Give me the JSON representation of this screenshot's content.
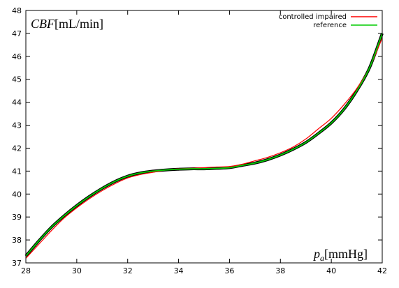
{
  "chart_data": {
    "type": "line",
    "ylabel_var": "CBF",
    "ylabel_unit": "[mL/min]",
    "xlabel_var": "p",
    "xlabel_sub": "a",
    "xlabel_unit": "[mmHg]",
    "xlim": [
      28,
      42
    ],
    "ylim": [
      37,
      48
    ],
    "xticks": [
      28,
      30,
      32,
      34,
      36,
      38,
      40,
      42
    ],
    "yticks": [
      37,
      38,
      39,
      40,
      41,
      42,
      43,
      44,
      45,
      46,
      47,
      48
    ],
    "grid": false,
    "legend_position": "top-right",
    "series": [
      {
        "name": "controlled impaired",
        "color": "#ff0000",
        "points": [
          [
            28,
            37.2
          ],
          [
            28.5,
            37.8
          ],
          [
            29,
            38.4
          ],
          [
            29.5,
            38.95
          ],
          [
            30,
            39.4
          ],
          [
            30.5,
            39.8
          ],
          [
            31,
            40.15
          ],
          [
            31.5,
            40.45
          ],
          [
            32,
            40.7
          ],
          [
            32.5,
            40.85
          ],
          [
            33,
            40.95
          ],
          [
            33.5,
            41.05
          ],
          [
            34,
            41.1
          ],
          [
            34.5,
            41.12
          ],
          [
            35,
            41.15
          ],
          [
            35.5,
            41.18
          ],
          [
            36,
            41.2
          ],
          [
            36.5,
            41.3
          ],
          [
            37,
            41.45
          ],
          [
            37.5,
            41.6
          ],
          [
            38,
            41.8
          ],
          [
            38.5,
            42.05
          ],
          [
            39,
            42.4
          ],
          [
            39.5,
            42.85
          ],
          [
            40,
            43.3
          ],
          [
            40.5,
            43.9
          ],
          [
            41,
            44.6
          ],
          [
            41.5,
            45.5
          ],
          [
            42,
            46.8
          ]
        ]
      },
      {
        "name": "reference",
        "color": "#00cc00",
        "points": [
          [
            28,
            37.3
          ],
          [
            28.5,
            37.95
          ],
          [
            29,
            38.55
          ],
          [
            29.5,
            39.05
          ],
          [
            30,
            39.5
          ],
          [
            30.5,
            39.9
          ],
          [
            31,
            40.25
          ],
          [
            31.5,
            40.55
          ],
          [
            32,
            40.78
          ],
          [
            32.5,
            40.92
          ],
          [
            33,
            41.0
          ],
          [
            33.5,
            41.05
          ],
          [
            34,
            41.08
          ],
          [
            34.5,
            41.1
          ],
          [
            35,
            41.1
          ],
          [
            35.5,
            41.12
          ],
          [
            36,
            41.15
          ],
          [
            36.5,
            41.25
          ],
          [
            37,
            41.35
          ],
          [
            37.5,
            41.5
          ],
          [
            38,
            41.7
          ],
          [
            38.5,
            41.95
          ],
          [
            39,
            42.25
          ],
          [
            39.5,
            42.65
          ],
          [
            40,
            43.1
          ],
          [
            40.5,
            43.7
          ],
          [
            41,
            44.5
          ],
          [
            41.5,
            45.5
          ],
          [
            42,
            47.0
          ]
        ]
      }
    ]
  }
}
